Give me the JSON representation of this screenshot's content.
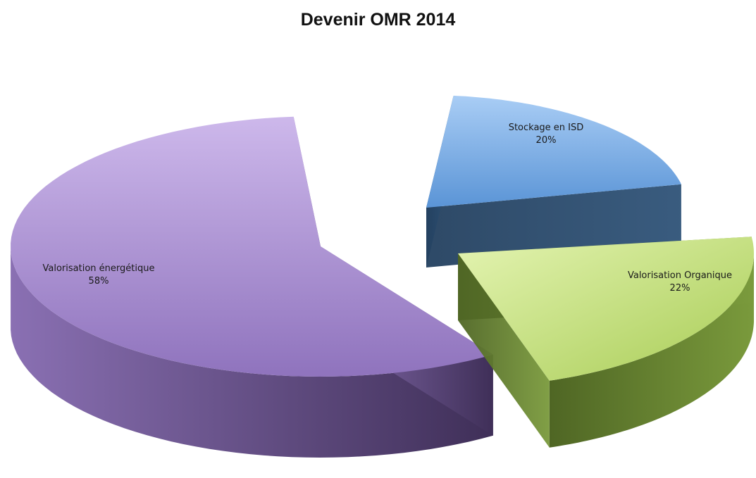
{
  "chart_data": {
    "type": "pie",
    "title": "Devenir OMR 2014",
    "slices": [
      {
        "name": "Valorisation énergétique",
        "value": 58,
        "value_label": "58%",
        "top_color": "#b79fd6",
        "side_color": "#5f4a82"
      },
      {
        "name": "Stockage en ISD",
        "value": 20,
        "value_label": "20%",
        "top_color": "#7fb0ea",
        "side_color": "#2c4d72"
      },
      {
        "name": "Valorisation Organique",
        "value": 22,
        "value_label": "22%",
        "top_color": "#c3e17e",
        "side_color": "#5f7a2e"
      }
    ],
    "legend": "none",
    "grid": false
  }
}
